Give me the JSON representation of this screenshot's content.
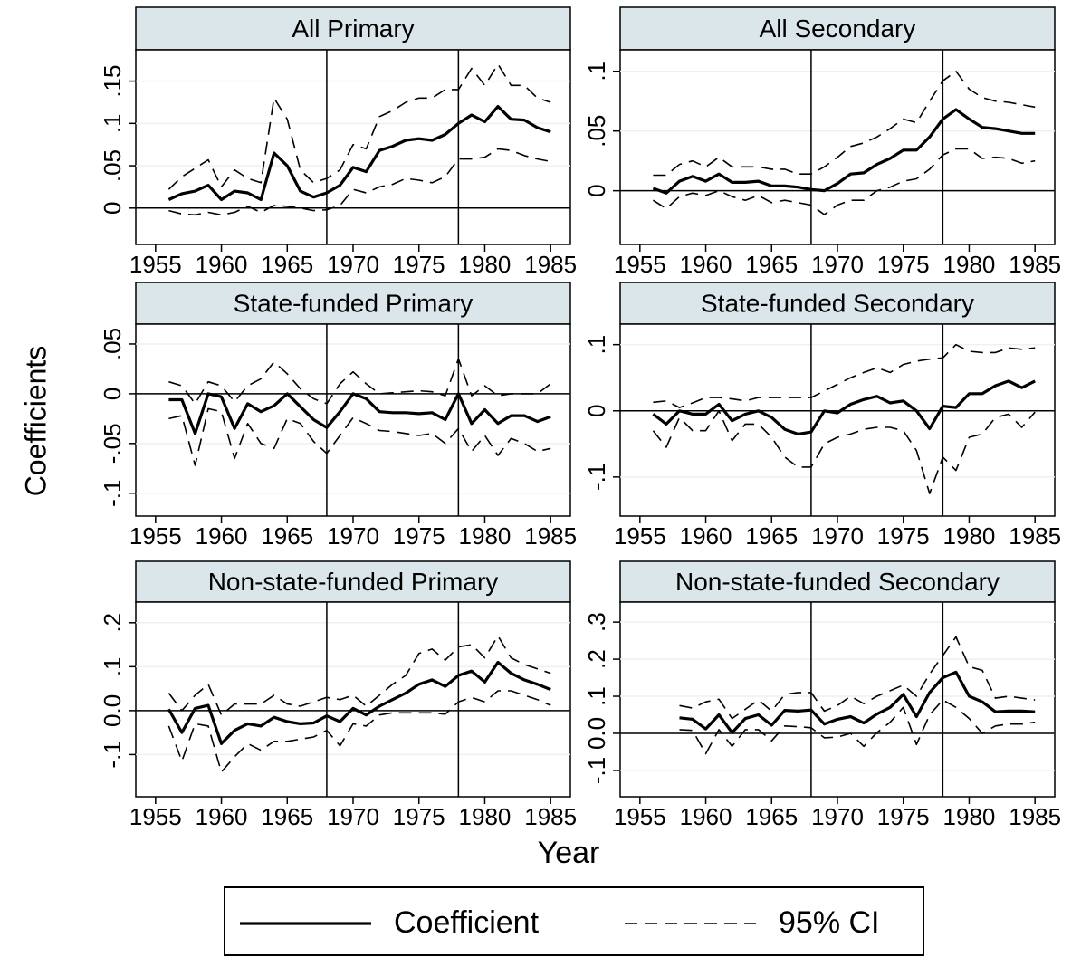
{
  "y_label": "Coefficients",
  "x_label": "Year",
  "legend": [
    {
      "label": "Coefficient",
      "style": "solid"
    },
    {
      "label": "95% CI",
      "style": "dashed"
    }
  ],
  "chart_data": [
    {
      "type": "line",
      "title": "All Primary",
      "x": [
        1956,
        1957,
        1958,
        1959,
        1960,
        1961,
        1962,
        1963,
        1964,
        1965,
        1966,
        1967,
        1968,
        1969,
        1970,
        1971,
        1972,
        1973,
        1974,
        1975,
        1976,
        1977,
        1978,
        1979,
        1980,
        1981,
        1982,
        1983,
        1984,
        1985
      ],
      "xlim": [
        1953.5,
        1986.5
      ],
      "xticks": [
        1955,
        1960,
        1965,
        1970,
        1975,
        1980,
        1985
      ],
      "ylim": [
        -0.043,
        0.187
      ],
      "yticks": [
        0,
        {
          "value": 0.05,
          "label": ".05"
        },
        {
          "value": 0.1,
          "label": ".1"
        },
        {
          "value": 0.15,
          "label": ".15"
        }
      ],
      "hline": 0,
      "vlines": [
        1968,
        1978
      ],
      "grid": true,
      "series": [
        {
          "style": "solid",
          "values": [
            0.01,
            0.017,
            0.02,
            0.027,
            0.01,
            0.02,
            0.018,
            0.01,
            0.065,
            0.05,
            0.02,
            0.013,
            0.018,
            0.027,
            0.048,
            0.043,
            0.068,
            0.073,
            0.08,
            0.082,
            0.08,
            0.087,
            0.1,
            0.11,
            0.102,
            0.12,
            0.105,
            0.104,
            0.095,
            0.09
          ]
        },
        {
          "style": "dashed",
          "values": [
            0.022,
            0.037,
            0.047,
            0.057,
            0.025,
            0.045,
            0.035,
            0.03,
            0.13,
            0.105,
            0.045,
            0.03,
            0.035,
            0.045,
            0.075,
            0.07,
            0.108,
            0.115,
            0.125,
            0.13,
            0.13,
            0.14,
            0.14,
            0.165,
            0.145,
            0.17,
            0.145,
            0.145,
            0.13,
            0.125
          ]
        },
        {
          "style": "dashed",
          "values": [
            -0.003,
            -0.007,
            -0.008,
            -0.005,
            -0.008,
            -0.005,
            0.002,
            -0.005,
            0.003,
            0.002,
            0,
            -0.003,
            -0.002,
            0.003,
            0.022,
            0.018,
            0.025,
            0.028,
            0.035,
            0.033,
            0.03,
            0.037,
            0.058,
            0.058,
            0.06,
            0.07,
            0.068,
            0.062,
            0.058,
            0.055
          ]
        }
      ]
    },
    {
      "type": "line",
      "title": "All Secondary",
      "x": [
        1956,
        1957,
        1958,
        1959,
        1960,
        1961,
        1962,
        1963,
        1964,
        1965,
        1966,
        1967,
        1968,
        1969,
        1970,
        1971,
        1972,
        1973,
        1974,
        1975,
        1976,
        1977,
        1978,
        1979,
        1980,
        1981,
        1982,
        1983,
        1984,
        1985
      ],
      "xlim": [
        1953.5,
        1986.5
      ],
      "xticks": [
        1955,
        1960,
        1965,
        1970,
        1975,
        1980,
        1985
      ],
      "ylim": [
        -0.045,
        0.118
      ],
      "yticks": [
        0,
        {
          "value": 0.05,
          "label": ".05"
        },
        {
          "value": 0.1,
          "label": ".1"
        }
      ],
      "hline": 0,
      "vlines": [
        1968,
        1978
      ],
      "grid": true,
      "series": [
        {
          "style": "solid",
          "values": [
            0.002,
            -0.002,
            0.008,
            0.012,
            0.008,
            0.014,
            0.007,
            0.007,
            0.008,
            0.004,
            0.004,
            0.003,
            0.001,
            0,
            0.006,
            0.014,
            0.015,
            0.022,
            0.027,
            0.034,
            0.034,
            0.045,
            0.06,
            0.068,
            0.06,
            0.053,
            0.052,
            0.05,
            0.048,
            0.048
          ]
        },
        {
          "style": "dashed",
          "values": [
            0.013,
            0.013,
            0.022,
            0.025,
            0.02,
            0.028,
            0.02,
            0.02,
            0.02,
            0.018,
            0.018,
            0.014,
            0.014,
            0.02,
            0.028,
            0.037,
            0.04,
            0.045,
            0.052,
            0.06,
            0.057,
            0.075,
            0.092,
            0.1,
            0.085,
            0.078,
            0.075,
            0.074,
            0.072,
            0.07
          ]
        },
        {
          "style": "dashed",
          "values": [
            -0.008,
            -0.015,
            -0.005,
            -0.002,
            -0.004,
            0,
            -0.005,
            -0.008,
            -0.004,
            -0.01,
            -0.008,
            -0.01,
            -0.012,
            -0.02,
            -0.012,
            -0.008,
            -0.008,
            0,
            0.003,
            0.008,
            0.01,
            0.018,
            0.03,
            0.035,
            0.035,
            0.027,
            0.028,
            0.027,
            0.023,
            0.025
          ]
        }
      ]
    },
    {
      "type": "line",
      "title": "State-funded Primary",
      "x": [
        1956,
        1957,
        1958,
        1959,
        1960,
        1961,
        1962,
        1963,
        1964,
        1965,
        1966,
        1967,
        1968,
        1969,
        1970,
        1971,
        1972,
        1973,
        1974,
        1975,
        1976,
        1977,
        1978,
        1979,
        1980,
        1981,
        1982,
        1983,
        1984,
        1985
      ],
      "xlim": [
        1953.5,
        1986.5
      ],
      "xticks": [
        1955,
        1960,
        1965,
        1970,
        1975,
        1980,
        1985
      ],
      "ylim": [
        -0.123,
        0.07
      ],
      "yticks": [
        {
          "value": -0.1,
          "label": "-.1"
        },
        {
          "value": -0.05,
          "label": "-.05"
        },
        0,
        {
          "value": 0.05,
          "label": ".05"
        }
      ],
      "hline": 0,
      "vlines": [
        1968,
        1978
      ],
      "grid": true,
      "series": [
        {
          "style": "solid",
          "values": [
            -0.006,
            -0.006,
            -0.04,
            0,
            -0.003,
            -0.035,
            -0.01,
            -0.018,
            -0.012,
            0,
            -0.013,
            -0.026,
            -0.034,
            -0.018,
            0,
            -0.005,
            -0.018,
            -0.019,
            -0.019,
            -0.02,
            -0.019,
            -0.026,
            0,
            -0.03,
            -0.016,
            -0.03,
            -0.022,
            -0.022,
            -0.028,
            -0.023
          ]
        },
        {
          "style": "dashed",
          "values": [
            0.012,
            0.008,
            -0.01,
            0.012,
            0.008,
            -0.008,
            0.008,
            0.015,
            0.032,
            0.02,
            0.005,
            -0.005,
            -0.01,
            0.01,
            0.022,
            0.01,
            0,
            0.001,
            0.002,
            0.003,
            0.002,
            -0.002,
            0.035,
            -0.002,
            0.008,
            -0.002,
            0,
            0,
            0,
            0.01
          ]
        },
        {
          "style": "dashed",
          "values": [
            -0.025,
            -0.022,
            -0.072,
            -0.015,
            -0.018,
            -0.065,
            -0.03,
            -0.05,
            -0.055,
            -0.025,
            -0.03,
            -0.048,
            -0.06,
            -0.042,
            -0.024,
            -0.03,
            -0.037,
            -0.038,
            -0.04,
            -0.042,
            -0.04,
            -0.05,
            -0.035,
            -0.058,
            -0.042,
            -0.062,
            -0.045,
            -0.05,
            -0.058,
            -0.055
          ]
        }
      ]
    },
    {
      "type": "line",
      "title": "State-funded Secondary",
      "x": [
        1956,
        1957,
        1958,
        1959,
        1960,
        1961,
        1962,
        1963,
        1964,
        1965,
        1966,
        1967,
        1968,
        1969,
        1970,
        1971,
        1972,
        1973,
        1974,
        1975,
        1976,
        1977,
        1978,
        1979,
        1980,
        1981,
        1982,
        1983,
        1984,
        1985
      ],
      "xlim": [
        1953.5,
        1986.5
      ],
      "xticks": [
        1955,
        1960,
        1965,
        1970,
        1975,
        1980,
        1985
      ],
      "ylim": [
        -0.159,
        0.131
      ],
      "yticks": [
        {
          "value": -0.1,
          "label": "-.1"
        },
        0,
        {
          "value": 0.1,
          "label": ".1"
        }
      ],
      "hline": 0,
      "vlines": [
        1968,
        1978
      ],
      "grid": true,
      "series": [
        {
          "style": "solid",
          "values": [
            -0.005,
            -0.02,
            0,
            -0.005,
            -0.005,
            0.01,
            -0.015,
            -0.005,
            0,
            -0.01,
            -0.028,
            -0.035,
            -0.032,
            0,
            -0.003,
            0.01,
            0.017,
            0.022,
            0.012,
            0.015,
            0,
            -0.027,
            0.007,
            0.005,
            0.026,
            0.026,
            0.038,
            0.045,
            0.035,
            0.045
          ]
        },
        {
          "style": "dashed",
          "values": [
            0.013,
            0.015,
            0.005,
            0.012,
            0.02,
            0.02,
            0.018,
            0.015,
            0.02,
            0.02,
            0.02,
            0.02,
            0.02,
            0.03,
            0.04,
            0.05,
            0.058,
            0.065,
            0.058,
            0.07,
            0.075,
            0.078,
            0.08,
            0.1,
            0.09,
            0.088,
            0.088,
            0.095,
            0.093,
            0.095
          ]
        },
        {
          "style": "dashed",
          "values": [
            -0.03,
            -0.055,
            -0.01,
            -0.03,
            -0.03,
            0,
            -0.045,
            -0.02,
            -0.02,
            -0.04,
            -0.07,
            -0.085,
            -0.085,
            -0.05,
            -0.04,
            -0.035,
            -0.028,
            -0.025,
            -0.025,
            -0.03,
            -0.06,
            -0.125,
            -0.07,
            -0.09,
            -0.04,
            -0.035,
            -0.01,
            -0.005,
            -0.025,
            -0.002
          ]
        }
      ]
    },
    {
      "type": "line",
      "title": "Non-state-funded Primary",
      "x": [
        1956,
        1957,
        1958,
        1959,
        1960,
        1961,
        1962,
        1963,
        1964,
        1965,
        1966,
        1967,
        1968,
        1969,
        1970,
        1971,
        1972,
        1973,
        1974,
        1975,
        1976,
        1977,
        1978,
        1979,
        1980,
        1981,
        1982,
        1983,
        1984,
        1985
      ],
      "xlim": [
        1953.5,
        1986.5
      ],
      "xticks": [
        1955,
        1960,
        1965,
        1970,
        1975,
        1980,
        1985
      ],
      "ylim": [
        -0.196,
        0.247
      ],
      "yticks": [
        {
          "value": -0.1,
          "label": "-.1"
        },
        {
          "value": 0,
          "label": "0.0"
        },
        {
          "value": 0.1,
          "label": ".1"
        },
        {
          "value": 0.2,
          "label": ".2"
        }
      ],
      "hline": 0,
      "vlines": [
        1968,
        1978
      ],
      "grid": true,
      "series": [
        {
          "style": "solid",
          "values": [
            0.003,
            -0.05,
            0.005,
            0.012,
            -0.075,
            -0.045,
            -0.03,
            -0.035,
            -0.015,
            -0.025,
            -0.03,
            -0.028,
            -0.012,
            -0.025,
            0.005,
            -0.01,
            0.01,
            0.025,
            0.04,
            0.06,
            0.07,
            0.055,
            0.08,
            0.09,
            0.065,
            0.11,
            0.085,
            0.07,
            0.06,
            0.048
          ]
        },
        {
          "style": "dashed",
          "values": [
            0.04,
            0,
            0.035,
            0.06,
            -0.01,
            0.015,
            0.015,
            0.015,
            0.035,
            0.015,
            0.01,
            0.02,
            0.03,
            0.025,
            0.035,
            0.01,
            0.035,
            0.06,
            0.08,
            0.13,
            0.14,
            0.115,
            0.145,
            0.15,
            0.12,
            0.17,
            0.12,
            0.105,
            0.095,
            0.085
          ]
        },
        {
          "style": "dashed",
          "values": [
            -0.035,
            -0.115,
            -0.03,
            -0.035,
            -0.14,
            -0.105,
            -0.075,
            -0.09,
            -0.07,
            -0.07,
            -0.065,
            -0.06,
            -0.045,
            -0.08,
            -0.03,
            -0.035,
            -0.01,
            -0.005,
            -0.005,
            -0.005,
            -0.005,
            -0.008,
            0.02,
            0.03,
            0.02,
            0.045,
            0.045,
            0.035,
            0.025,
            0.012
          ]
        }
      ]
    },
    {
      "type": "line",
      "title": "Non-state-funded Secondary",
      "x": [
        1958,
        1959,
        1960,
        1961,
        1962,
        1963,
        1964,
        1965,
        1966,
        1967,
        1968,
        1969,
        1970,
        1971,
        1972,
        1973,
        1974,
        1975,
        1976,
        1977,
        1978,
        1979,
        1980,
        1981,
        1982,
        1983,
        1984,
        1985
      ],
      "xlim": [
        1953.5,
        1986.5
      ],
      "xticks": [
        1955,
        1960,
        1965,
        1970,
        1975,
        1980,
        1985
      ],
      "ylim": [
        -0.171,
        0.354
      ],
      "yticks": [
        {
          "value": -0.1,
          "label": "-.1"
        },
        {
          "value": 0,
          "label": "0.0"
        },
        {
          "value": 0.1,
          "label": ".1"
        },
        {
          "value": 0.2,
          "label": ".2"
        },
        {
          "value": 0.3,
          "label": ".3"
        }
      ],
      "hline": 0,
      "vlines": [
        1968,
        1978
      ],
      "grid": true,
      "series": [
        {
          "style": "solid",
          "values": [
            0.042,
            0.038,
            0.012,
            0.05,
            0.002,
            0.04,
            0.05,
            0.022,
            0.062,
            0.06,
            0.063,
            0.025,
            0.038,
            0.045,
            0.028,
            0.052,
            0.07,
            0.105,
            0.045,
            0.11,
            0.15,
            0.165,
            0.1,
            0.085,
            0.058,
            0.06,
            0.06,
            0.058
          ]
        },
        {
          "style": "dashed",
          "values": [
            0.075,
            0.068,
            0.085,
            0.092,
            0.04,
            0.065,
            0.09,
            0.06,
            0.105,
            0.11,
            0.11,
            0.06,
            0.075,
            0.1,
            0.08,
            0.1,
            0.115,
            0.13,
            0.1,
            0.16,
            0.21,
            0.26,
            0.18,
            0.17,
            0.095,
            0.1,
            0.095,
            0.09
          ]
        },
        {
          "style": "dashed",
          "values": [
            0.01,
            0.008,
            -0.055,
            0.01,
            -0.035,
            0.01,
            0.01,
            -0.02,
            0.02,
            0.018,
            0.015,
            -0.012,
            -0.01,
            0,
            -0.035,
            0.002,
            0.03,
            0.07,
            -0.03,
            0.05,
            0.09,
            0.07,
            0.04,
            0,
            0.02,
            0.025,
            0.025,
            0.03
          ]
        }
      ]
    }
  ]
}
